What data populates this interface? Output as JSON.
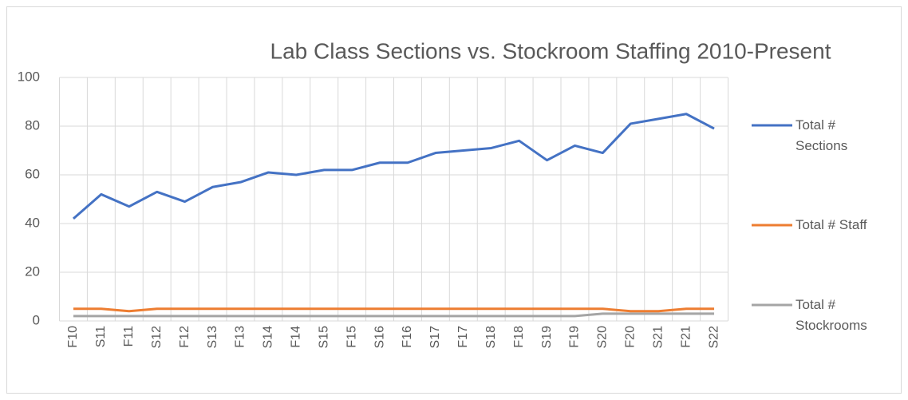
{
  "chart_data": {
    "type": "line",
    "title": "Lab Class Sections vs. Stockroom Staffing 2010-Present",
    "categories": [
      "F10",
      "S11",
      "F11",
      "S12",
      "F12",
      "S13",
      "F13",
      "S14",
      "F14",
      "S15",
      "F15",
      "S16",
      "F16",
      "S17",
      "F17",
      "S18",
      "F18",
      "S19",
      "F19",
      "S20",
      "F20",
      "S21",
      "F21",
      "S22"
    ],
    "series": [
      {
        "name": "Total # Sections",
        "color": "#4472c4",
        "values": [
          42,
          52,
          47,
          53,
          49,
          55,
          57,
          61,
          60,
          62,
          62,
          65,
          65,
          69,
          70,
          71,
          74,
          66,
          72,
          69,
          81,
          83,
          85,
          79
        ]
      },
      {
        "name": "Total # Staff",
        "color": "#ed7d31",
        "values": [
          5,
          5,
          4,
          5,
          5,
          5,
          5,
          5,
          5,
          5,
          5,
          5,
          5,
          5,
          5,
          5,
          5,
          5,
          5,
          5,
          4,
          4,
          5,
          5
        ]
      },
      {
        "name": "Total # Stockrooms",
        "color": "#a5a5a5",
        "values": [
          2,
          2,
          2,
          2,
          2,
          2,
          2,
          2,
          2,
          2,
          2,
          2,
          2,
          2,
          2,
          2,
          2,
          2,
          2,
          3,
          3,
          3,
          3,
          3
        ]
      }
    ],
    "ylim": [
      0,
      100
    ],
    "yticks": [
      0,
      20,
      40,
      60,
      80,
      100
    ],
    "grid": true,
    "legend": "right"
  }
}
